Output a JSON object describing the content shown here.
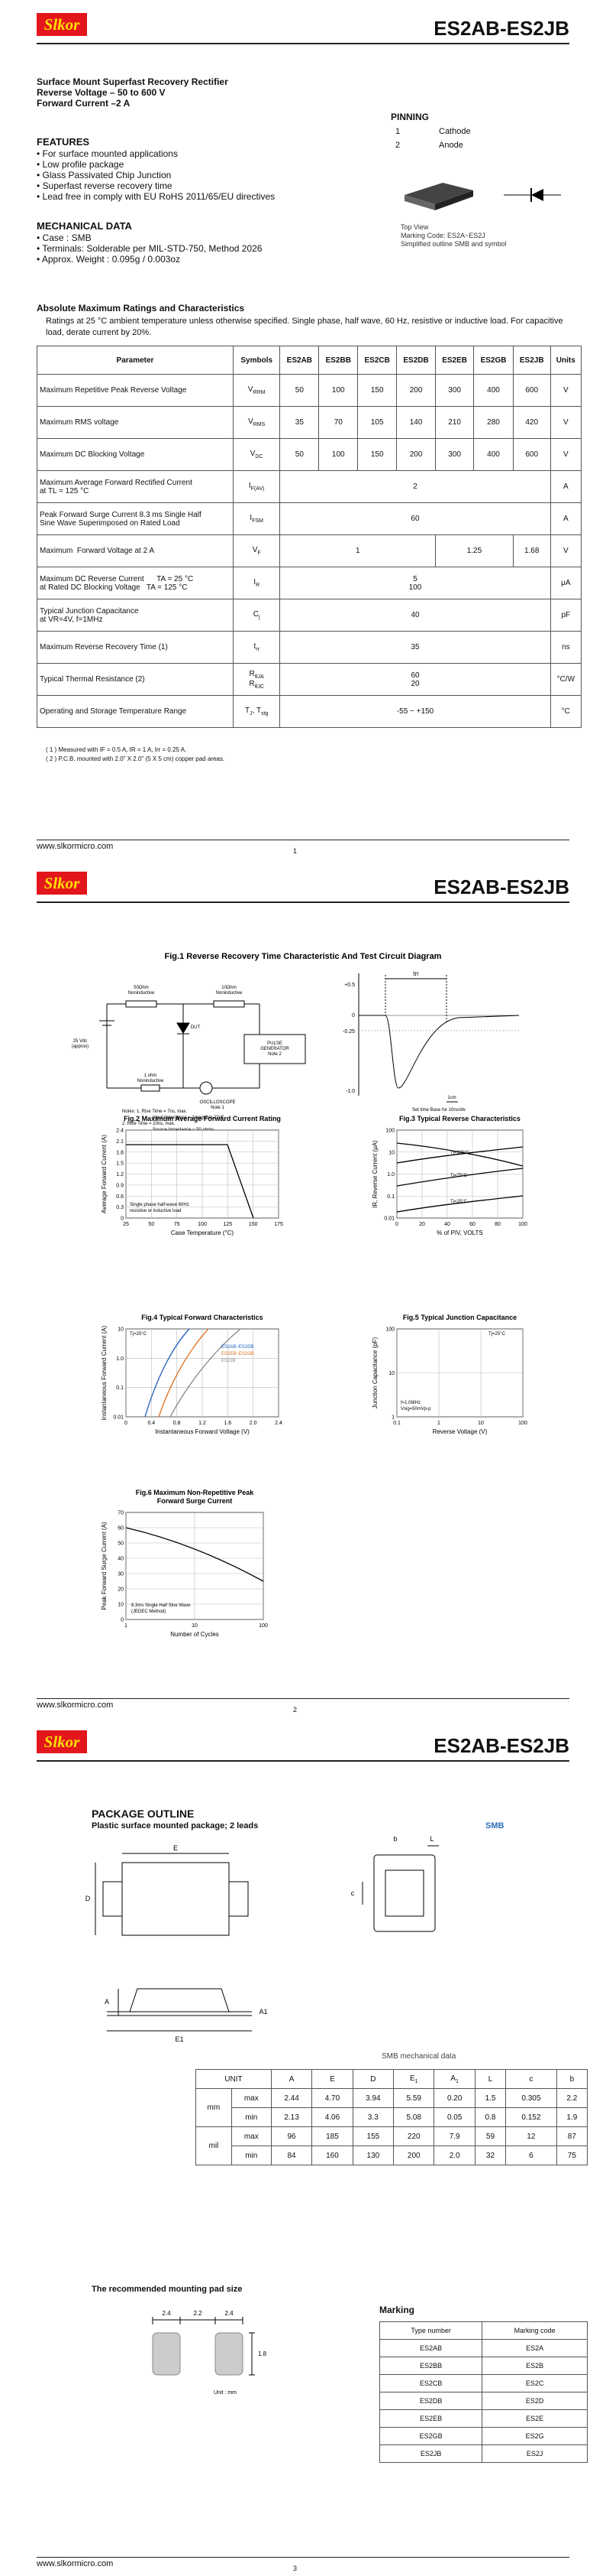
{
  "header": {
    "logo": "Slkor",
    "part_number": "ES2AB-ES2JB"
  },
  "footer": {
    "website": "www.slkormicro.com",
    "page_numbers": [
      "1",
      "2",
      "3"
    ]
  },
  "page1": {
    "intro": [
      "Surface Mount Superfast Recovery Rectifier",
      "Reverse Voltage – 50 to 600 V",
      "Forward Current –2 A"
    ],
    "features": {
      "title": "FEATURES",
      "items": [
        "For surface mounted applications",
        "Low profile package",
        "Glass Passivated Chip Junction",
        "Superfast reverse recovery time",
        "Lead free in comply with EU RoHS 2011/65/EU directives"
      ]
    },
    "mechanical": {
      "title": "MECHANICAL DATA",
      "items": [
        "Case : SMB",
        "Terminals: Solderable per MIL-STD-750, Method 2026",
        "Approx. Weight : 0.095g / 0.003oz"
      ]
    },
    "pinning": {
      "title": "PINNING",
      "rows": [
        [
          "1",
          "Cathode"
        ],
        [
          "2",
          "Anode"
        ]
      ],
      "notes": [
        "Top View",
        "Marking Code: ES2A~ES2J",
        "Simplified outline SMB and symbol"
      ]
    },
    "ratings": {
      "title": "Absolute Maximum Ratings and Characteristics",
      "note": "Ratings at 25 °C ambient temperature unless otherwise specified. Single phase, half wave, 60 Hz, resistive or inductive load. For capacitive load, derate current by 20%.",
      "header": [
        "Parameter",
        "Symbols",
        "ES2AB",
        "ES2BB",
        "ES2CB",
        "ES2DB",
        "ES2EB",
        "ES2GB",
        "ES2JB",
        "Units"
      ],
      "rows": [
        {
          "parameter": [
            "Maximum Repetitive Peak Reverse Voltage"
          ],
          "symbol": [
            {
              "main": "V",
              "sub": "RRM"
            }
          ],
          "values": [
            "50",
            "100",
            "150",
            "200",
            "300",
            "400",
            "600"
          ],
          "unit": "V"
        },
        {
          "parameter": [
            "Maximum RMS voltage"
          ],
          "symbol": [
            {
              "main": "V",
              "sub": "RMS"
            }
          ],
          "values": [
            "35",
            "70",
            "105",
            "140",
            "210",
            "280",
            "420"
          ],
          "unit": "V"
        },
        {
          "parameter": [
            "Maximum DC Blocking Voltage"
          ],
          "symbol": [
            {
              "main": "V",
              "sub": "DC"
            }
          ],
          "values": [
            "50",
            "100",
            "150",
            "200",
            "300",
            "400",
            "600"
          ],
          "unit": "V"
        },
        {
          "parameter": [
            "Maximum Average Forward Rectified Current",
            "at TL = 125 °C"
          ],
          "symbol": [
            {
              "main": "I",
              "sub": "F(AV)"
            }
          ],
          "values": [
            "2"
          ],
          "unit": "A"
        },
        {
          "parameter": [
            "Peak Forward Surge Current 8.3 ms Single Half",
            "Sine Wave Superimposed on Rated Load"
          ],
          "symbol": [
            {
              "main": "I",
              "sub": "FSM"
            }
          ],
          "values": [
            "60"
          ],
          "unit": "A"
        },
        {
          "parameter": [
            "Maximum  Forward Voltage at 2 A"
          ],
          "symbol": [
            {
              "main": "V",
              "sub": "F"
            }
          ],
          "values": [
            "1",
            "1.25",
            "1.68"
          ],
          "unit": "V"
        },
        {
          "parameter": [
            "Maximum DC Reverse Current      TA = 25 °C",
            "at Rated DC Blocking Voltage   TA = 125 °C"
          ],
          "symbol": [
            {
              "main": "I",
              "sub": "R"
            }
          ],
          "values": [
            [
              "5",
              "100"
            ]
          ],
          "unit": "μA"
        },
        {
          "parameter": [
            "Typical Junction Capacitance",
            "at VR=4V, f=1MHz"
          ],
          "symbol": [
            {
              "main": "C",
              "sub": "j"
            }
          ],
          "values": [
            "40"
          ],
          "unit": "pF"
        },
        {
          "parameter": [
            "Maximum Reverse Recovery Time (1)"
          ],
          "symbol": [
            {
              "main": "t",
              "sub": "rr"
            }
          ],
          "values": [
            "35"
          ],
          "unit": "ns"
        },
        {
          "parameter": [
            "Typical Thermal Resistance (2)"
          ],
          "symbol": [
            {
              "main": "R",
              "sub": "θJA"
            },
            {
              "main": "R",
              "sub": "θJC"
            }
          ],
          "values": [
            [
              "60",
              "20"
            ]
          ],
          "unit": "°C/W"
        },
        {
          "parameter": [
            "Operating and Storage Temperature Range"
          ],
          "symbol": [
            {
              "main": "T",
              "sub": "J"
            },
            {
              "main": ", T",
              "sub": "stg"
            }
          ],
          "values": [
            "-55 ~ +150"
          ],
          "unit": "°C"
        }
      ],
      "footnotes": [
        "( 1 ) Measured with IF = 0.5 A, IR = 1 A, Irr = 0.25 A.",
        "( 2 ) P.C.B. mounted with 2.0\" X 2.0\" (5 X 5 cm) copper pad areas."
      ]
    }
  },
  "page2": {
    "fig1": {
      "title": "Fig.1  Reverse Recovery Time Characteristic And Test Circuit Diagram",
      "circuit_labels": [
        [
          "50Ωhm",
          "Noninductive"
        ],
        [
          "10Ωhm",
          "Noninductive"
        ],
        [
          "DUT"
        ],
        [
          "25 Vdc",
          "(approx)"
        ],
        [
          "1 ohm",
          "Noninductive"
        ],
        [
          "OSCILLOSCOPE",
          "Note 1"
        ],
        [
          "PULSE",
          "GENERATOR",
          "Note 2"
        ]
      ],
      "notes": [
        "Notes: 1. Rise Time = 7ns, max.",
        "Input Impedance = 1megohm,22pF",
        "2. Rise Time = 10ns, max.",
        "Source Impedance = 50 ohms."
      ],
      "wave_ticks": [
        "+0.5",
        "0",
        "-0.25",
        "-1.0"
      ],
      "trr": "trr",
      "scale": "1cm",
      "timebase": "Set time Base for 10ns/div"
    },
    "figures": [
      {
        "title": [
          "Fig.2  Maximum Average Forward Current Rating"
        ],
        "ylabel": "Average Forward Current (A)",
        "xlabel": "Case Temperature (°C)",
        "yticks": [
          "0",
          "0.3",
          "0.6",
          "0.9",
          "1.2",
          "1.5",
          "1.8",
          "2.1",
          "2.4"
        ],
        "xticks": [
          "25",
          "50",
          "75",
          "100",
          "125",
          "150",
          "175"
        ],
        "notes": [
          "Single phase half-wave 60Hz",
          "resistive or inductive load"
        ]
      },
      {
        "title": [
          "Fig.3  Typical Reverse Characteristics"
        ],
        "ylabel": "IR, Reverse Current (μA)",
        "xlabel": "% of PIV, VOLTS",
        "yticks": [
          "0.01",
          "0.1",
          "1.0",
          "10",
          "100"
        ],
        "xticks": [
          "0",
          "20",
          "40",
          "60",
          "80",
          "100"
        ],
        "notes": [
          "Tj=100°C",
          "Tj=75°C",
          "Tj=25°C"
        ]
      },
      {
        "title": [
          "Fig.4  Typical Forward Characteristics"
        ],
        "ylabel": "Instantaneous Forward Current (A)",
        "xlabel": "Instantaneous Forward Voltage (V)",
        "yticks": [
          "0.01",
          "0.1",
          "1.0",
          "10"
        ],
        "xticks": [
          "0",
          "0.4",
          "0.8",
          "1.2",
          "1.6",
          "2.0",
          "2.4"
        ],
        "notes": [
          "Tj=25°C",
          "ES2AB~ES2DB",
          "ES2EB~ES2GB",
          "ES2JB"
        ]
      },
      {
        "title": [
          "Fig.5  Typical Junction Capacitance"
        ],
        "ylabel": "Junction Capacitance (pF)",
        "xlabel": "Reverse Voltage (V)",
        "yticks": [
          "1",
          "10",
          "100"
        ],
        "xticks": [
          "0.1",
          "1",
          "10",
          "100"
        ],
        "notes": [
          "Tj=25°C",
          "f=1.0MHz",
          "Vsig=50mVp-p"
        ]
      },
      {
        "title": [
          "Fig.6  Maximum Non-Repetitive Peak",
          "Forward Surge Current"
        ],
        "ylabel": "Peak Forward Surge Current (A)",
        "xlabel": "Number of Cycles",
        "yticks": [
          "0",
          "10",
          "20",
          "30",
          "40",
          "50",
          "60",
          "70"
        ],
        "xticks": [
          "1",
          "10",
          "100"
        ],
        "notes": [
          "8.3ms Single Half Sine Wave",
          "(JEDEC Method)"
        ]
      }
    ]
  },
  "page3": {
    "title": "PACKAGE  OUTLINE",
    "subtitle": "Plastic surface mounted package; 2 leads",
    "package": "SMB",
    "dims": [
      "E",
      "D",
      "b",
      "L",
      "c",
      "A",
      "A1",
      "E1"
    ],
    "mech": {
      "caption": "SMB mechanical data",
      "header": [
        "UNIT",
        "A",
        "E",
        "D",
        {
          "main": "E",
          "sub": "1"
        },
        {
          "main": "A",
          "sub": "1"
        },
        "L",
        "c",
        "b"
      ],
      "groups": [
        {
          "unit": "mm",
          "rows": [
            {
              "limit": "max",
              "values": [
                "2.44",
                "4.70",
                "3.94",
                "5.59",
                "0.20",
                "1.5",
                "0.305",
                "2.2"
              ]
            },
            {
              "limit": "min",
              "values": [
                "2.13",
                "4.06",
                "3.3",
                "5.08",
                "0.05",
                "0.8",
                "0.152",
                "1.9"
              ]
            }
          ]
        },
        {
          "unit": "mil",
          "rows": [
            {
              "limit": "max",
              "values": [
                "96",
                "185",
                "155",
                "220",
                "7.9",
                "59",
                "12",
                "87"
              ]
            },
            {
              "limit": "min",
              "values": [
                "84",
                "160",
                "130",
                "200",
                "2.0",
                "32",
                "6",
                "75"
              ]
            }
          ]
        }
      ]
    },
    "pad": {
      "title": "The recommended mounting pad size",
      "dims": [
        "2.4",
        "2.2",
        "2.4",
        "1.8"
      ],
      "unit": "Unit : mm"
    },
    "marking": {
      "title": "Marking",
      "header": [
        "Type number",
        "Marking code"
      ],
      "rows": [
        [
          "ES2AB",
          "ES2A"
        ],
        [
          "ES2BB",
          "ES2B"
        ],
        [
          "ES2CB",
          "ES2C"
        ],
        [
          "ES2DB",
          "ES2D"
        ],
        [
          "ES2EB",
          "ES2E"
        ],
        [
          "ES2GB",
          "ES2G"
        ],
        [
          "ES2JB",
          "ES2J"
        ]
      ]
    }
  }
}
